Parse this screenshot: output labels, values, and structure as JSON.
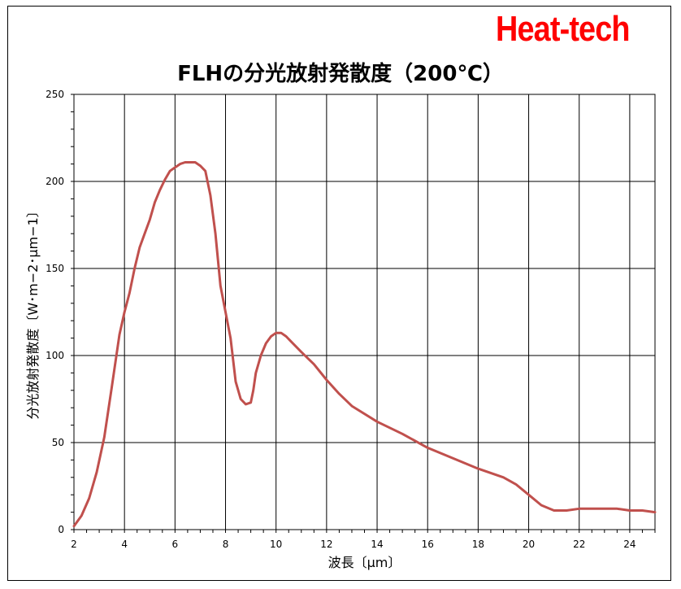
{
  "logo": "Heat-tech",
  "chart_data": {
    "type": "line",
    "title": "FLHの分光放射発散度（200℃）",
    "xlabel": "波長〔μm〕",
    "ylabel": "分光放射発散度〔W･m−2･μm−1〕",
    "xlim": [
      2,
      25
    ],
    "ylim": [
      0,
      250
    ],
    "xticks": [
      2,
      4,
      6,
      8,
      10,
      12,
      14,
      16,
      18,
      20,
      22,
      24
    ],
    "yticks": [
      0,
      50,
      100,
      150,
      200,
      250
    ],
    "grid": true,
    "series": [
      {
        "color": "#c0504d",
        "x": [
          2.0,
          2.3,
          2.6,
          2.9,
          3.2,
          3.5,
          3.8,
          4.0,
          4.2,
          4.4,
          4.6,
          4.8,
          5.0,
          5.2,
          5.4,
          5.6,
          5.8,
          6.0,
          6.2,
          6.4,
          6.6,
          6.8,
          7.0,
          7.2,
          7.4,
          7.6,
          7.8,
          8.0,
          8.2,
          8.4,
          8.6,
          8.8,
          9.0,
          9.1,
          9.2,
          9.4,
          9.6,
          9.8,
          10.0,
          10.2,
          10.4,
          10.6,
          11.0,
          11.5,
          12.0,
          12.5,
          13.0,
          14.0,
          15.0,
          16.0,
          17.0,
          18.0,
          19.0,
          19.5,
          20.0,
          20.5,
          21.0,
          21.5,
          22.0,
          22.5,
          23.0,
          23.5,
          24.0,
          24.5,
          25.0
        ],
        "y": [
          2,
          8,
          18,
          33,
          53,
          82,
          112,
          125,
          136,
          150,
          162,
          170,
          178,
          188,
          195,
          201,
          206,
          208,
          210,
          211,
          211,
          211,
          209,
          206,
          192,
          170,
          140,
          125,
          110,
          85,
          75,
          72,
          73,
          80,
          90,
          100,
          107,
          111,
          113,
          113,
          111,
          108,
          102,
          95,
          86,
          78,
          71,
          62,
          55,
          47,
          41,
          35,
          30,
          26,
          20,
          14,
          11,
          11,
          12,
          12,
          12,
          12,
          11,
          11,
          10
        ]
      }
    ]
  }
}
